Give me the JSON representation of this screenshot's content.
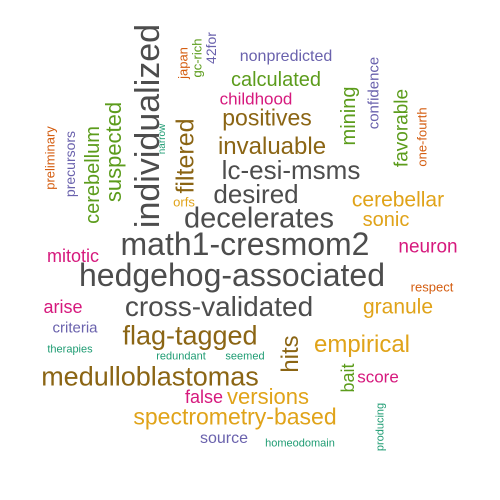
{
  "words": [
    {
      "id": "hedgehog-associated",
      "text": "hedgehog-associated",
      "color": "#4d4d4d"
    },
    {
      "id": "math1-cresmom2",
      "text": "math1-cresmom2",
      "color": "#4d4d4d"
    },
    {
      "id": "individualized",
      "text": "individualized",
      "color": "#4d4d4d"
    },
    {
      "id": "decelerates",
      "text": "decelerates",
      "color": "#4d4d4d"
    },
    {
      "id": "cross-validated",
      "text": "cross-validated",
      "color": "#4d4d4d"
    },
    {
      "id": "lc-esi-msms",
      "text": "lc-esi-msms",
      "color": "#4d4d4d"
    },
    {
      "id": "desired",
      "text": "desired",
      "color": "#4d4d4d"
    },
    {
      "id": "medulloblastomas",
      "text": "medulloblastomas",
      "color": "#8b6514"
    },
    {
      "id": "flag-tagged",
      "text": "flag-tagged",
      "color": "#8b6514"
    },
    {
      "id": "invaluable",
      "text": "invaluable",
      "color": "#8b6514"
    },
    {
      "id": "positives",
      "text": "positives",
      "color": "#8b6514"
    },
    {
      "id": "filtered",
      "text": "filtered",
      "color": "#8b6514"
    },
    {
      "id": "hits",
      "text": "hits",
      "color": "#8b6514"
    },
    {
      "id": "spectrometry-based",
      "text": "spectrometry-based",
      "color": "#e0a319"
    },
    {
      "id": "empirical",
      "text": "empirical",
      "color": "#e0a319"
    },
    {
      "id": "granule",
      "text": "granule",
      "color": "#e0a319"
    },
    {
      "id": "cerebellar",
      "text": "cerebellar",
      "color": "#e0a319"
    },
    {
      "id": "versions",
      "text": "versions",
      "color": "#e0a319"
    },
    {
      "id": "sonic",
      "text": "sonic",
      "color": "#e0a319"
    },
    {
      "id": "orfs",
      "text": "orfs",
      "color": "#e0a319"
    },
    {
      "id": "suspected",
      "text": "suspected",
      "color": "#5c9c1c"
    },
    {
      "id": "cerebellum",
      "text": "cerebellum",
      "color": "#5c9c1c"
    },
    {
      "id": "calculated",
      "text": "calculated",
      "color": "#5c9c1c"
    },
    {
      "id": "mining",
      "text": "mining",
      "color": "#5c9c1c"
    },
    {
      "id": "favorable",
      "text": "favorable",
      "color": "#5c9c1c"
    },
    {
      "id": "bait",
      "text": "bait",
      "color": "#5c9c1c"
    },
    {
      "id": "gc-rich",
      "text": "gc-rich",
      "color": "#5c9c1c"
    },
    {
      "id": "narrow",
      "text": "narrow",
      "color": "#1f9c73"
    },
    {
      "id": "therapies",
      "text": "therapies",
      "color": "#1f9c73"
    },
    {
      "id": "redundant",
      "text": "redundant",
      "color": "#1f9c73"
    },
    {
      "id": "seemed",
      "text": "seemed",
      "color": "#1f9c73"
    },
    {
      "id": "homeodomain",
      "text": "homeodomain",
      "color": "#1f9c73"
    },
    {
      "id": "producing",
      "text": "producing",
      "color": "#1f9c73"
    },
    {
      "id": "nonpredicted",
      "text": "nonpredicted",
      "color": "#6a62ad"
    },
    {
      "id": "confidence",
      "text": "confidence",
      "color": "#6a62ad"
    },
    {
      "id": "42for",
      "text": "42for",
      "color": "#6a62ad"
    },
    {
      "id": "precursors",
      "text": "precursors",
      "color": "#6a62ad"
    },
    {
      "id": "criteria",
      "text": "criteria",
      "color": "#6a62ad"
    },
    {
      "id": "source",
      "text": "source",
      "color": "#6a62ad"
    },
    {
      "id": "childhood",
      "text": "childhood",
      "color": "#d6197d"
    },
    {
      "id": "neuron",
      "text": "neuron",
      "color": "#d6197d"
    },
    {
      "id": "mitotic",
      "text": "mitotic",
      "color": "#d6197d"
    },
    {
      "id": "arise",
      "text": "arise",
      "color": "#d6197d"
    },
    {
      "id": "false",
      "text": "false",
      "color": "#d6197d"
    },
    {
      "id": "score",
      "text": "score",
      "color": "#d6197d"
    },
    {
      "id": "japan",
      "text": "japan",
      "color": "#d45d10"
    },
    {
      "id": "preliminary",
      "text": "preliminary",
      "color": "#d45d10"
    },
    {
      "id": "one-fourth",
      "text": "one-fourth",
      "color": "#d45d10"
    },
    {
      "id": "respect",
      "text": "respect",
      "color": "#d45d10"
    }
  ]
}
